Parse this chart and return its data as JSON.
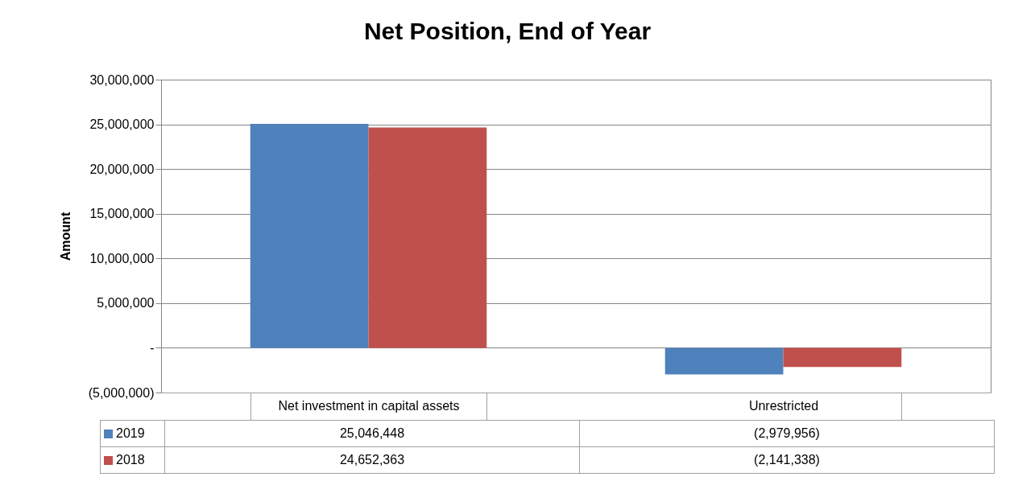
{
  "chart_data": {
    "type": "bar",
    "title": "Net Position, End of Year",
    "ylabel": "Amount",
    "categories": [
      "Net investment in capital assets",
      "Unrestricted"
    ],
    "series": [
      {
        "name": "2019",
        "color": "#4f81bd",
        "values": [
          25046448,
          -2979956
        ],
        "value_labels": [
          "25,046,448",
          "(2,979,956)"
        ]
      },
      {
        "name": "2018",
        "color": "#c0504d",
        "values": [
          24652363,
          -2141338
        ],
        "value_labels": [
          "24,652,363",
          "(2,141,338)"
        ]
      }
    ],
    "ylim": [
      -5000000,
      30000000
    ],
    "yticks": [
      {
        "value": -5000000,
        "label": "(5,000,000)"
      },
      {
        "value": 0,
        "label": "-"
      },
      {
        "value": 5000000,
        "label": "5,000,000"
      },
      {
        "value": 10000000,
        "label": "10,000,000"
      },
      {
        "value": 15000000,
        "label": "15,000,000"
      },
      {
        "value": 20000000,
        "label": "20,000,000"
      },
      {
        "value": 25000000,
        "label": "25,000,000"
      },
      {
        "value": 30000000,
        "label": "30,000,000"
      }
    ],
    "grid": "y",
    "legend": "bottom"
  }
}
